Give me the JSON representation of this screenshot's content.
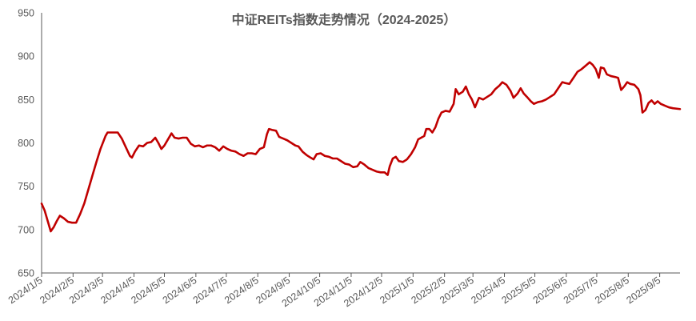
{
  "chart_data": {
    "type": "line",
    "title": "中证REITs指数走势情况（2024-2025）",
    "xlabel": "",
    "ylabel": "",
    "ylim": [
      650,
      950
    ],
    "yticks": [
      650,
      700,
      750,
      800,
      850,
      900,
      950
    ],
    "grid": false,
    "legend": "none",
    "line_color": "#C00000",
    "xticks": [
      "2024/1/5",
      "2024/2/5",
      "2024/3/5",
      "2024/4/5",
      "2024/5/5",
      "2024/6/5",
      "2024/7/5",
      "2024/8/5",
      "2024/9/5",
      "2024/10/5",
      "2024/11/5",
      "2024/12/5",
      "2025/1/5",
      "2025/2/5",
      "2025/3/5",
      "2025/4/5",
      "2025/5/5",
      "2025/6/5",
      "2025/7/5",
      "2025/8/5",
      "2025/9/5"
    ],
    "xrange": [
      "2024/1/5",
      "2025/9/25"
    ],
    "series": [
      {
        "name": "",
        "points": [
          [
            "2024/1/5",
            730
          ],
          [
            "2024/1/8",
            722
          ],
          [
            "2024/1/11",
            710
          ],
          [
            "2024/1/14",
            698
          ],
          [
            "2024/1/17",
            703
          ],
          [
            "2024/1/20",
            710
          ],
          [
            "2024/1/23",
            716
          ],
          [
            "2024/1/27",
            713
          ],
          [
            "2024/1/31",
            709
          ],
          [
            "2024/2/4",
            708
          ],
          [
            "2024/2/8",
            708
          ],
          [
            "2024/2/12",
            718
          ],
          [
            "2024/2/16",
            730
          ],
          [
            "2024/2/20",
            746
          ],
          [
            "2024/2/24",
            762
          ],
          [
            "2024/2/28",
            778
          ],
          [
            "2024/3/3",
            793
          ],
          [
            "2024/3/8",
            808
          ],
          [
            "2024/3/10",
            812
          ],
          [
            "2024/3/15",
            812
          ],
          [
            "2024/3/20",
            812
          ],
          [
            "2024/3/24",
            805
          ],
          [
            "2024/3/28",
            795
          ],
          [
            "2024/4/1",
            785
          ],
          [
            "2024/4/3",
            783
          ],
          [
            "2024/4/6",
            790
          ],
          [
            "2024/4/10",
            797
          ],
          [
            "2024/4/14",
            796
          ],
          [
            "2024/4/18",
            800
          ],
          [
            "2024/4/22",
            801
          ],
          [
            "2024/4/26",
            806
          ],
          [
            "2024/4/29",
            800
          ],
          [
            "2024/5/2",
            793
          ],
          [
            "2024/5/5",
            797
          ],
          [
            "2024/5/9",
            805
          ],
          [
            "2024/5/12",
            811
          ],
          [
            "2024/5/15",
            806
          ],
          [
            "2024/5/19",
            805
          ],
          [
            "2024/5/23",
            806
          ],
          [
            "2024/5/27",
            806
          ],
          [
            "2024/5/31",
            799
          ],
          [
            "2024/6/4",
            796
          ],
          [
            "2024/6/8",
            797
          ],
          [
            "2024/6/12",
            795
          ],
          [
            "2024/6/16",
            797
          ],
          [
            "2024/6/20",
            797
          ],
          [
            "2024/6/24",
            795
          ],
          [
            "2024/6/28",
            791
          ],
          [
            "2024/7/2",
            796
          ],
          [
            "2024/7/6",
            793
          ],
          [
            "2024/7/10",
            791
          ],
          [
            "2024/7/14",
            790
          ],
          [
            "2024/7/18",
            787
          ],
          [
            "2024/7/22",
            785
          ],
          [
            "2024/7/26",
            788
          ],
          [
            "2024/7/30",
            788
          ],
          [
            "2024/8/3",
            787
          ],
          [
            "2024/8/7",
            793
          ],
          [
            "2024/8/11",
            795
          ],
          [
            "2024/8/14",
            810
          ],
          [
            "2024/8/16",
            816
          ],
          [
            "2024/8/19",
            815
          ],
          [
            "2024/8/23",
            814
          ],
          [
            "2024/8/26",
            807
          ],
          [
            "2024/8/30",
            805
          ],
          [
            "2024/9/3",
            803
          ],
          [
            "2024/9/7",
            800
          ],
          [
            "2024/9/11",
            797
          ],
          [
            "2024/9/14",
            796
          ],
          [
            "2024/9/18",
            790
          ],
          [
            "2024/9/22",
            786
          ],
          [
            "2024/9/26",
            783
          ],
          [
            "2024/9/29",
            781
          ],
          [
            "2024/10/2",
            787
          ],
          [
            "2024/10/6",
            788
          ],
          [
            "2024/10/10",
            785
          ],
          [
            "2024/10/14",
            784
          ],
          [
            "2024/10/18",
            782
          ],
          [
            "2024/10/22",
            782
          ],
          [
            "2024/10/26",
            779
          ],
          [
            "2024/10/30",
            776
          ],
          [
            "2024/11/3",
            775
          ],
          [
            "2024/11/7",
            772
          ],
          [
            "2024/11/11",
            773
          ],
          [
            "2024/11/14",
            778
          ],
          [
            "2024/11/18",
            775
          ],
          [
            "2024/11/22",
            771
          ],
          [
            "2024/11/26",
            769
          ],
          [
            "2024/11/30",
            767
          ],
          [
            "2024/12/4",
            766
          ],
          [
            "2024/12/8",
            766
          ],
          [
            "2024/12/11",
            763
          ],
          [
            "2024/12/13",
            773
          ],
          [
            "2024/12/16",
            782
          ],
          [
            "2024/12/19",
            784
          ],
          [
            "2024/12/22",
            779
          ],
          [
            "2024/12/26",
            778
          ],
          [
            "2024/12/30",
            781
          ],
          [
            "2025/1/3",
            787
          ],
          [
            "2025/1/7",
            795
          ],
          [
            "2025/1/10",
            804
          ],
          [
            "2025/1/13",
            806
          ],
          [
            "2025/1/16",
            808
          ],
          [
            "2025/1/18",
            816
          ],
          [
            "2025/1/21",
            816
          ],
          [
            "2025/1/24",
            812
          ],
          [
            "2025/1/27",
            818
          ],
          [
            "2025/1/30",
            828
          ],
          [
            "2025/2/2",
            835
          ],
          [
            "2025/2/6",
            837
          ],
          [
            "2025/2/10",
            836
          ],
          [
            "2025/2/14",
            845
          ],
          [
            "2025/2/16",
            862
          ],
          [
            "2025/2/19",
            856
          ],
          [
            "2025/2/23",
            859
          ],
          [
            "2025/2/26",
            865
          ],
          [
            "2025/3/1",
            856
          ],
          [
            "2025/3/4",
            850
          ],
          [
            "2025/3/7",
            841
          ],
          [
            "2025/3/11",
            852
          ],
          [
            "2025/3/15",
            850
          ],
          [
            "2025/3/19",
            853
          ],
          [
            "2025/3/23",
            856
          ],
          [
            "2025/3/27",
            862
          ],
          [
            "2025/3/31",
            866
          ],
          [
            "2025/4/3",
            870
          ],
          [
            "2025/4/7",
            867
          ],
          [
            "2025/4/11",
            860
          ],
          [
            "2025/4/14",
            852
          ],
          [
            "2025/4/18",
            857
          ],
          [
            "2025/4/21",
            863
          ],
          [
            "2025/4/24",
            857
          ],
          [
            "2025/4/28",
            852
          ],
          [
            "2025/5/1",
            848
          ],
          [
            "2025/5/4",
            845
          ],
          [
            "2025/5/8",
            847
          ],
          [
            "2025/5/12",
            848
          ],
          [
            "2025/5/16",
            850
          ],
          [
            "2025/5/20",
            853
          ],
          [
            "2025/5/24",
            856
          ],
          [
            "2025/5/28",
            863
          ],
          [
            "2025/6/1",
            870
          ],
          [
            "2025/6/4",
            869
          ],
          [
            "2025/6/8",
            868
          ],
          [
            "2025/6/12",
            875
          ],
          [
            "2025/6/16",
            882
          ],
          [
            "2025/6/20",
            885
          ],
          [
            "2025/6/24",
            889
          ],
          [
            "2025/6/28",
            893
          ],
          [
            "2025/7/1",
            890
          ],
          [
            "2025/7/4",
            885
          ],
          [
            "2025/7/7",
            875
          ],
          [
            "2025/7/9",
            887
          ],
          [
            "2025/7/12",
            886
          ],
          [
            "2025/7/15",
            879
          ],
          [
            "2025/7/19",
            877
          ],
          [
            "2025/7/23",
            876
          ],
          [
            "2025/7/26",
            875
          ],
          [
            "2025/7/29",
            861
          ],
          [
            "2025/8/1",
            865
          ],
          [
            "2025/8/4",
            870
          ],
          [
            "2025/8/7",
            868
          ],
          [
            "2025/8/11",
            867
          ],
          [
            "2025/8/15",
            862
          ],
          [
            "2025/8/17",
            855
          ],
          [
            "2025/8/19",
            835
          ],
          [
            "2025/8/22",
            838
          ],
          [
            "2025/8/25",
            846
          ],
          [
            "2025/8/28",
            849
          ],
          [
            "2025/8/31",
            845
          ],
          [
            "2025/9/3",
            848
          ],
          [
            "2025/9/6",
            845
          ],
          [
            "2025/9/10",
            843
          ],
          [
            "2025/9/14",
            841
          ],
          [
            "2025/9/18",
            840
          ],
          [
            "2025/9/25",
            839
          ]
        ]
      }
    ]
  }
}
